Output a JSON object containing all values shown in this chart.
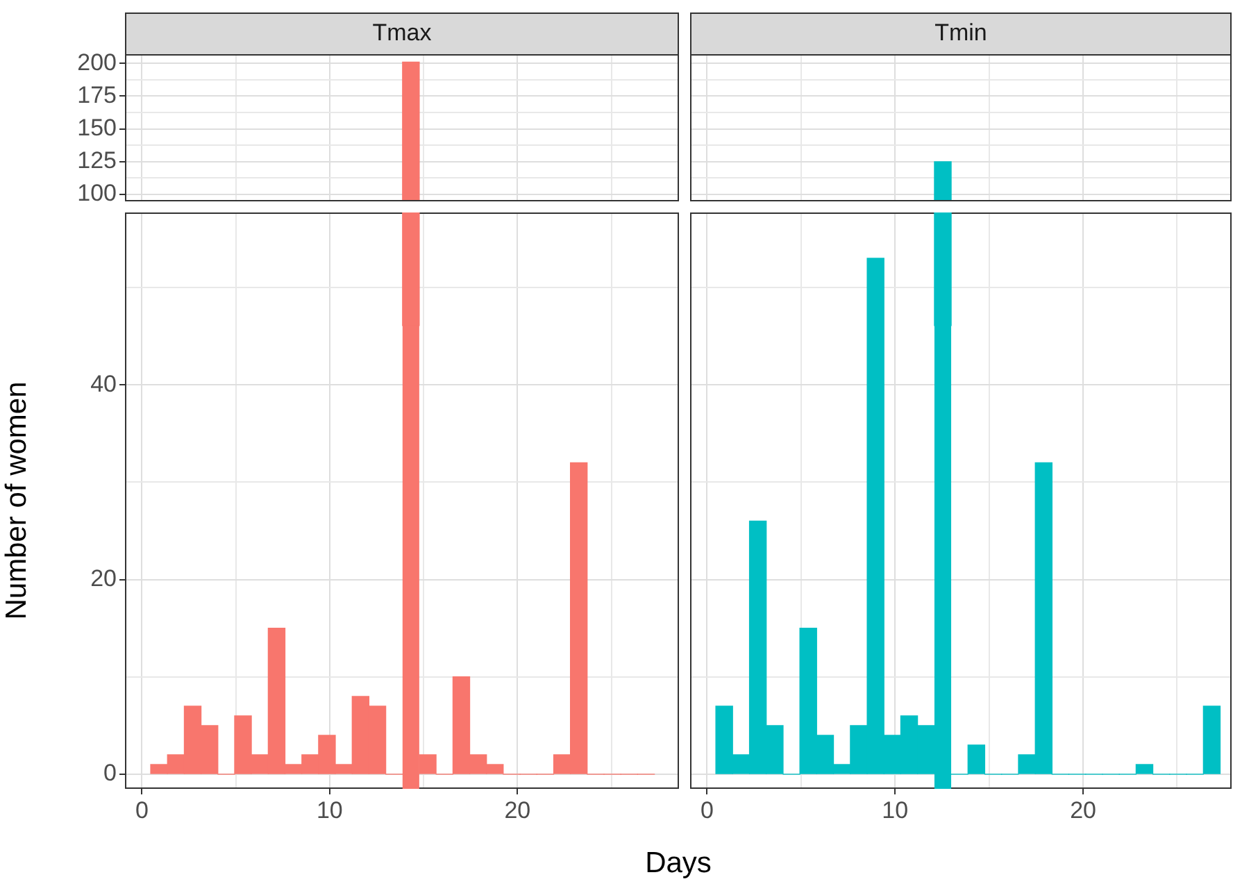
{
  "chart_data": [
    {
      "type": "histogram",
      "title": "Tmax",
      "bins": [
        0.47,
        1.36,
        2.26,
        3.15,
        4.05,
        4.94,
        5.83,
        6.73,
        7.62,
        8.52,
        9.41,
        10.3,
        11.2,
        12.09,
        12.99,
        13.88,
        14.77,
        15.67,
        16.56,
        17.46,
        18.35,
        19.24,
        20.14,
        21.03,
        21.93,
        22.82,
        23.71,
        24.61,
        25.5,
        26.4,
        27.29
      ],
      "values": [
        null,
        null,
        null,
        null,
        null,
        null,
        null,
        null,
        null,
        null,
        null,
        null,
        null,
        null,
        null,
        201,
        null,
        null,
        null,
        null,
        null,
        null,
        null,
        null,
        null,
        null,
        null,
        null,
        null,
        null
      ],
      "color": "#f8766d",
      "xlim": [
        -0.9,
        28.6
      ],
      "xticks": [
        0,
        {
          "value": 5,
          "label": null
        },
        10,
        {
          "value": 15,
          "label": null
        },
        20,
        {
          "value": 25,
          "label": null
        }
      ],
      "ylim": [
        94.7,
        207
      ],
      "yticks": [
        100,
        {
          "value": 112.5,
          "label": null
        },
        125,
        {
          "value": 137.5,
          "label": null
        },
        150,
        {
          "value": 162.5,
          "label": null
        },
        175,
        {
          "value": 187.5,
          "label": null
        },
        200
      ],
      "grid": true,
      "tick_labels": "y"
    },
    {
      "type": "histogram",
      "title": "Tmin",
      "bins": [
        0.47,
        1.36,
        2.26,
        3.15,
        4.05,
        4.94,
        5.83,
        6.73,
        7.62,
        8.52,
        9.41,
        10.3,
        11.2,
        12.09,
        12.99,
        13.88,
        14.77,
        15.67,
        16.56,
        17.46,
        18.35,
        19.24,
        20.14,
        21.03,
        21.93,
        22.82,
        23.71,
        24.61,
        25.5,
        26.4,
        27.29
      ],
      "values": [
        null,
        null,
        null,
        null,
        null,
        null,
        null,
        null,
        null,
        null,
        null,
        null,
        null,
        125,
        null,
        null,
        null,
        null,
        null,
        null,
        null,
        null,
        null,
        null,
        null,
        null,
        null,
        null,
        null,
        null
      ],
      "color": "#00bfc4",
      "xlim": [
        -0.9,
        27.9
      ],
      "xticks": [
        0,
        {
          "value": 5,
          "label": null
        },
        10,
        {
          "value": 15,
          "label": null
        },
        20,
        {
          "value": 25,
          "label": null
        }
      ],
      "ylim": [
        94.7,
        207
      ],
      "yticks": [
        100,
        {
          "value": 112.5,
          "label": null
        },
        125,
        {
          "value": 137.5,
          "label": null
        },
        150,
        {
          "value": 162.5,
          "label": null
        },
        175,
        {
          "value": 187.5,
          "label": null
        },
        200
      ],
      "grid": true,
      "tick_labels": false
    },
    {
      "type": "histogram",
      "xlabel": "Days",
      "ylabel": "Number of women",
      "bins": [
        0.47,
        1.36,
        2.26,
        3.15,
        4.05,
        4.94,
        5.83,
        6.73,
        7.62,
        8.52,
        9.41,
        10.3,
        11.2,
        12.09,
        12.99,
        13.88,
        14.77,
        15.67,
        16.56,
        17.46,
        18.35,
        19.24,
        20.14,
        21.03,
        21.93,
        22.82,
        23.71,
        24.61,
        25.5,
        26.4,
        27.29
      ],
      "values": [
        1,
        2,
        7,
        5,
        0,
        6,
        2,
        15,
        1,
        2,
        4,
        1,
        8,
        7,
        0,
        null,
        2,
        0,
        10,
        2,
        1,
        0,
        0,
        0,
        2,
        32,
        0,
        0,
        0,
        0
      ],
      "color": "#f8766d",
      "xlim": [
        -0.9,
        28.6
      ],
      "xticks": [
        0,
        {
          "value": 5,
          "label": null
        },
        10,
        {
          "value": 15,
          "label": null
        },
        20,
        {
          "value": 25,
          "label": null
        }
      ],
      "ylim": [
        -1.5,
        57.7
      ],
      "yticks": [
        0,
        {
          "value": 10,
          "label": null
        },
        20,
        {
          "value": 30,
          "label": null
        },
        40,
        {
          "value": 50,
          "label": null
        }
      ],
      "grid": true
    },
    {
      "type": "histogram",
      "bins": [
        0.47,
        1.36,
        2.26,
        3.15,
        4.05,
        4.94,
        5.83,
        6.73,
        7.62,
        8.52,
        9.41,
        10.3,
        11.2,
        12.09,
        12.99,
        13.88,
        14.77,
        15.67,
        16.56,
        17.46,
        18.35,
        19.24,
        20.14,
        21.03,
        21.93,
        22.82,
        23.71,
        24.61,
        25.5,
        26.4,
        27.29
      ],
      "values": [
        7,
        2,
        26,
        5,
        0,
        15,
        4,
        1,
        5,
        53,
        4,
        6,
        5,
        null,
        0,
        3,
        0,
        0,
        2,
        32,
        0,
        0,
        0,
        0,
        0,
        1,
        0,
        0,
        0,
        7
      ],
      "color": "#00bfc4",
      "xlim": [
        -0.9,
        27.9
      ],
      "xticks": [
        0,
        {
          "value": 5,
          "label": null
        },
        10,
        {
          "value": 15,
          "label": null
        },
        20,
        {
          "value": 25,
          "label": null
        }
      ],
      "ylim": [
        -1.5,
        57.7
      ],
      "yticks": [
        0,
        {
          "value": 10,
          "label": null
        },
        20,
        {
          "value": 30,
          "label": null
        },
        40,
        {
          "value": 50,
          "label": null
        }
      ],
      "grid": true,
      "tick_labels": "x"
    }
  ]
}
